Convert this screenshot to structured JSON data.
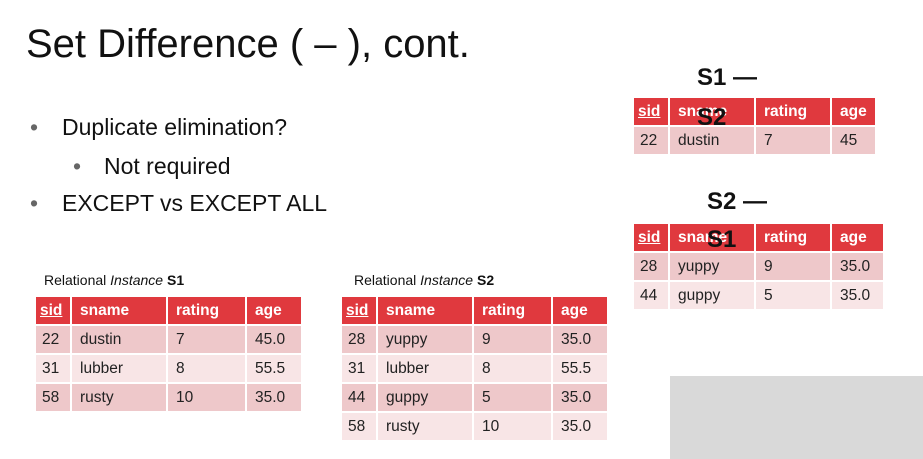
{
  "title": "Set Difference ( – ), cont.",
  "bullets": [
    {
      "text": "Duplicate elimination?",
      "level": 1
    },
    {
      "text": "Not required",
      "level": 2
    },
    {
      "text": "EXCEPT vs EXCEPT ALL",
      "level": 1
    }
  ],
  "bullet_glyph": "•",
  "captions": {
    "s1": {
      "prefix": "Relational ",
      "italic": "Instance",
      "bold": "S1"
    },
    "s2": {
      "prefix": "Relational ",
      "italic": "Instance",
      "bold": "S2"
    }
  },
  "table_s1": {
    "headers": [
      "sid",
      "sname",
      "rating",
      "age"
    ],
    "rows": [
      [
        "22",
        "dustin",
        "7",
        "45.0"
      ],
      [
        "31",
        "lubber",
        "8",
        "55.5"
      ],
      [
        "58",
        "rusty",
        "10",
        "35.0"
      ]
    ]
  },
  "table_s2": {
    "headers": [
      "sid",
      "sname",
      "rating",
      "age"
    ],
    "rows": [
      [
        "28",
        "yuppy",
        "9",
        "35.0"
      ],
      [
        "31",
        "lubber",
        "8",
        "55.5"
      ],
      [
        "44",
        "guppy",
        "5",
        "35.0"
      ],
      [
        "58",
        "rusty",
        "10",
        "35.0"
      ]
    ]
  },
  "result_s1_minus_s2": {
    "label_top": "S1 —",
    "label_bottom": "S2",
    "headers": [
      "sid",
      "sname",
      "rating",
      "age"
    ],
    "rows": [
      [
        "22",
        "dustin",
        "7",
        "45"
      ]
    ]
  },
  "result_s2_minus_s1": {
    "label_top": "S2 —",
    "label_bottom": "S1",
    "headers": [
      "sid",
      "sname",
      "rating",
      "age"
    ],
    "rows": [
      [
        "28",
        "yuppy",
        "9",
        "35.0"
      ],
      [
        "44",
        "guppy",
        "5",
        "35.0"
      ]
    ]
  },
  "colors": {
    "header_bg": "#e0393e",
    "row_dark": "#eec8ca",
    "row_light": "#f8e5e6",
    "placeholder_gray": "#d9d9d9"
  }
}
